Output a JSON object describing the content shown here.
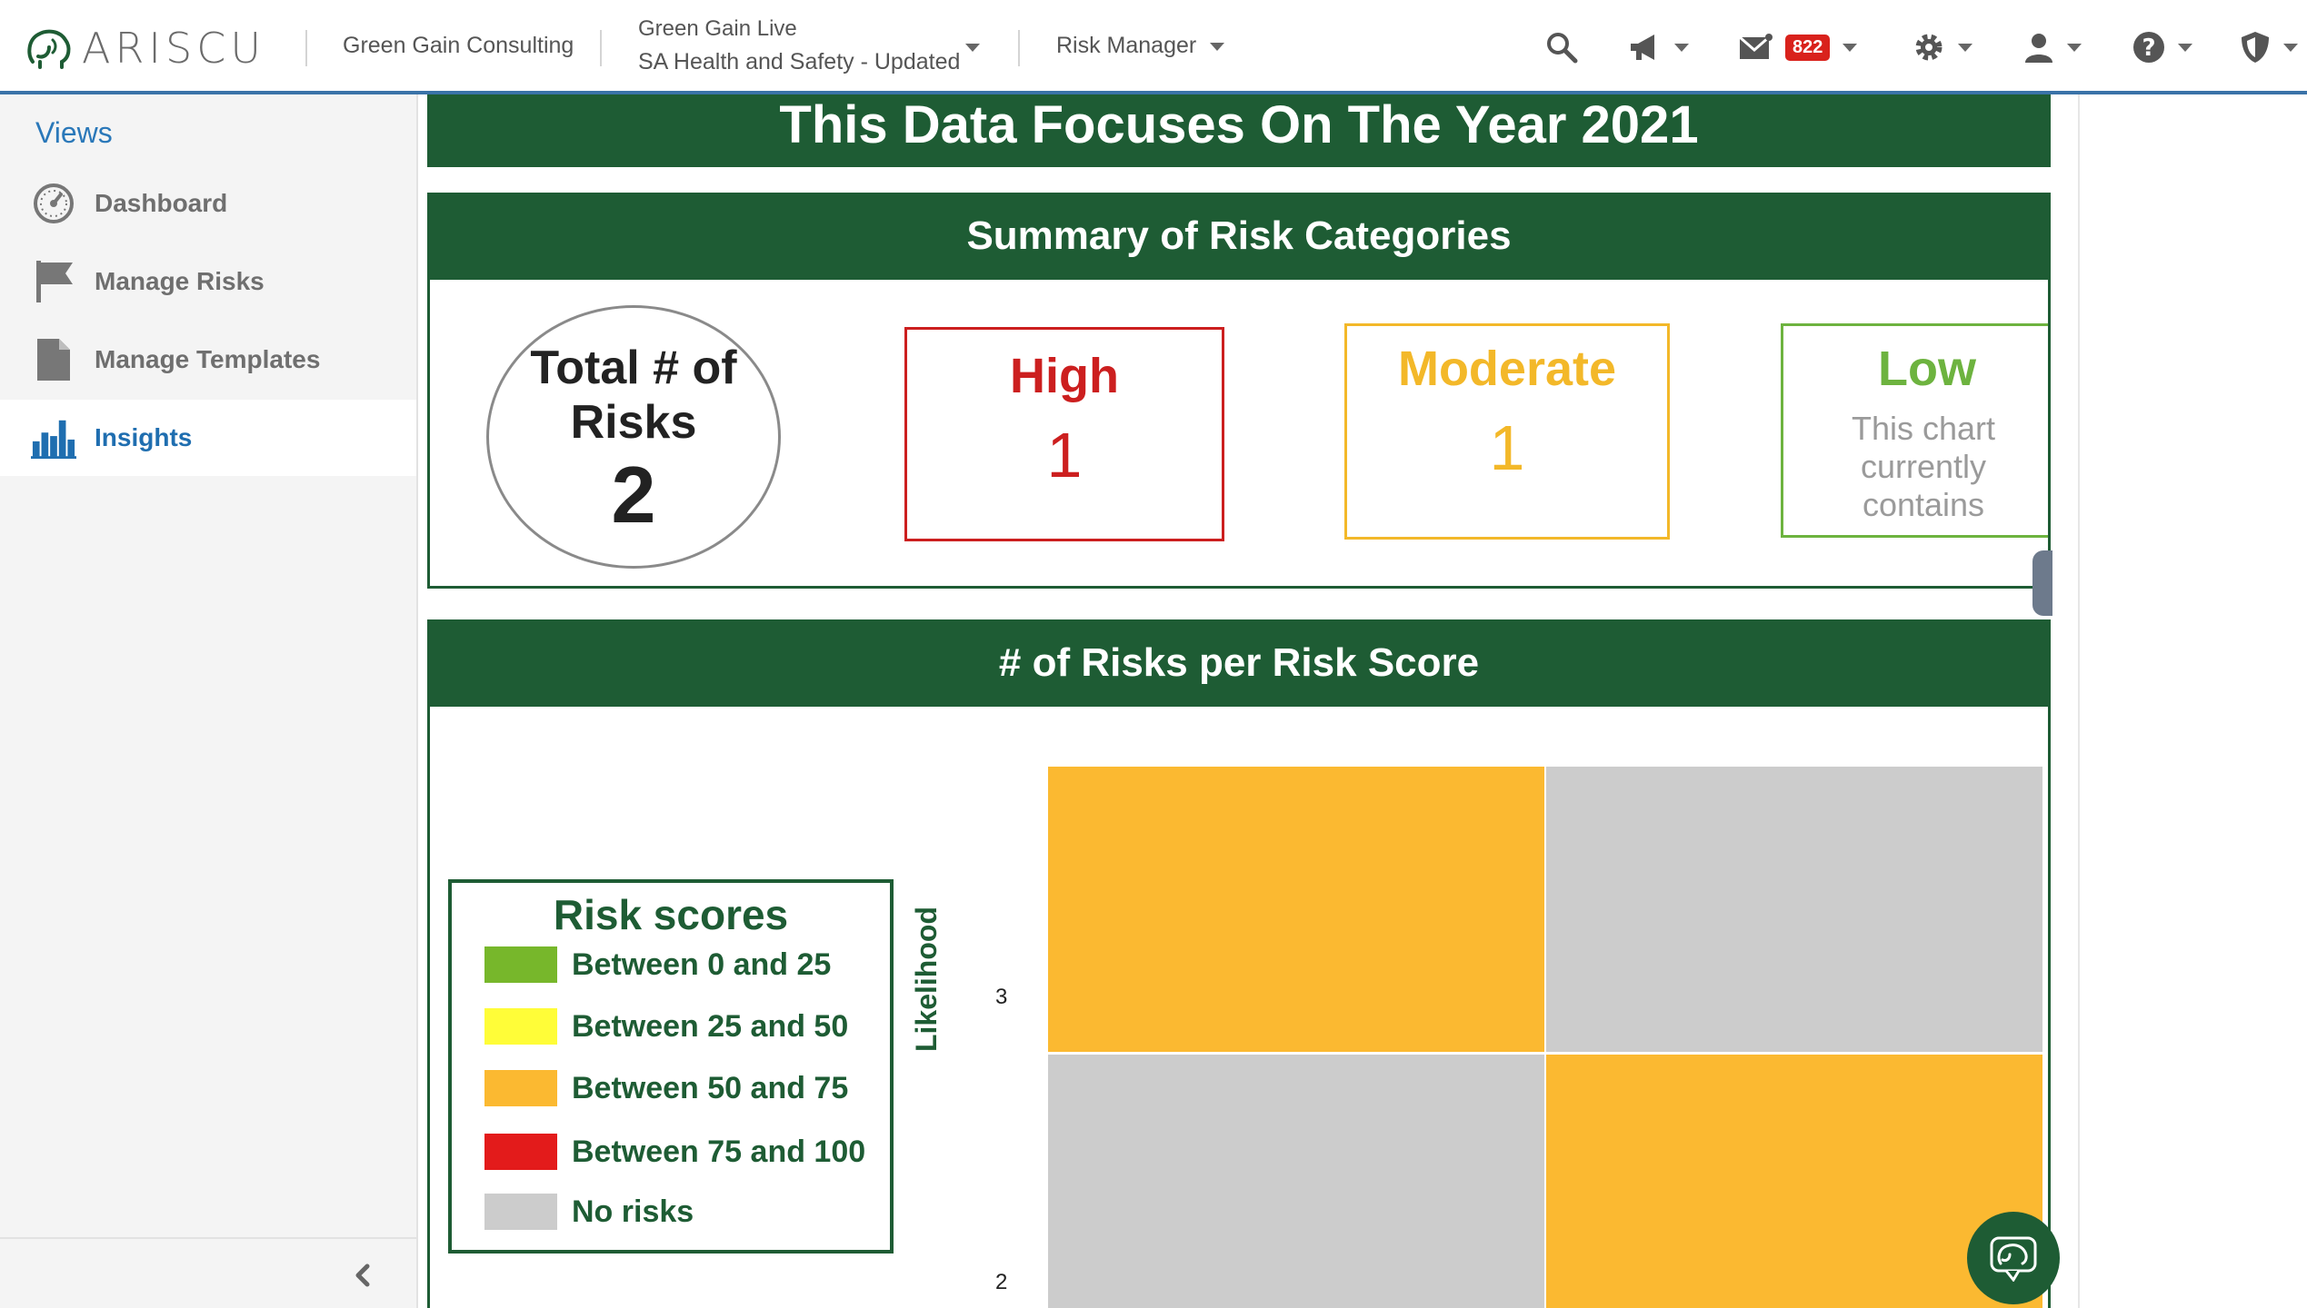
{
  "topbar": {
    "logo_text": "ARISCU",
    "org": "Green Gain Consulting",
    "project_line1": "Green Gain Live",
    "project_line2": "SA Health and Safety - Updated",
    "role": "Risk Manager",
    "mail_count": "822"
  },
  "sidebar": {
    "title": "Views",
    "items": [
      {
        "label": "Dashboard",
        "icon": "speedometer-icon",
        "active": false
      },
      {
        "label": "Manage Risks",
        "icon": "flag-icon",
        "active": false
      },
      {
        "label": "Manage Templates",
        "icon": "document-icon",
        "active": false
      },
      {
        "label": "Insights",
        "icon": "bar-chart-icon",
        "active": true
      }
    ]
  },
  "banner": {
    "text": "This Data Focuses On The Year 2021"
  },
  "summary": {
    "title": "Summary of Risk Categories",
    "total_label": "Total # of Risks",
    "total_value": "2",
    "high": {
      "label": "High",
      "value": "1",
      "color": "#cc1f1f"
    },
    "moderate": {
      "label": "Moderate",
      "value": "1",
      "color": "#f3b829"
    },
    "low": {
      "label": "Low",
      "message": "This chart currently contains",
      "color": "#6db33f"
    }
  },
  "chart_data": {
    "type": "heatmap",
    "title": "# of Risks per Risk Score",
    "ylabel": "Likelihood",
    "y_ticks_visible": [
      "3",
      "2"
    ],
    "legend_title": "Risk scores",
    "legend": [
      {
        "label": "Between 0 and 25",
        "color": "#77b72b"
      },
      {
        "label": "Between 25 and 50",
        "color": "#fffd38"
      },
      {
        "label": "Between 50 and 75",
        "color": "#fbb931"
      },
      {
        "label": "Between 75 and 100",
        "color": "#e31b1b"
      },
      {
        "label": "No risks",
        "color": "#cccccc"
      }
    ],
    "cells_visible": [
      {
        "likelihood": 3,
        "col": 1,
        "category": "Between 50 and 75"
      },
      {
        "likelihood": 3,
        "col": 2,
        "category": "No risks"
      },
      {
        "likelihood": 2,
        "col": 1,
        "category": "No risks"
      },
      {
        "likelihood": 2,
        "col": 2,
        "category": "Between 50 and 75"
      }
    ]
  }
}
